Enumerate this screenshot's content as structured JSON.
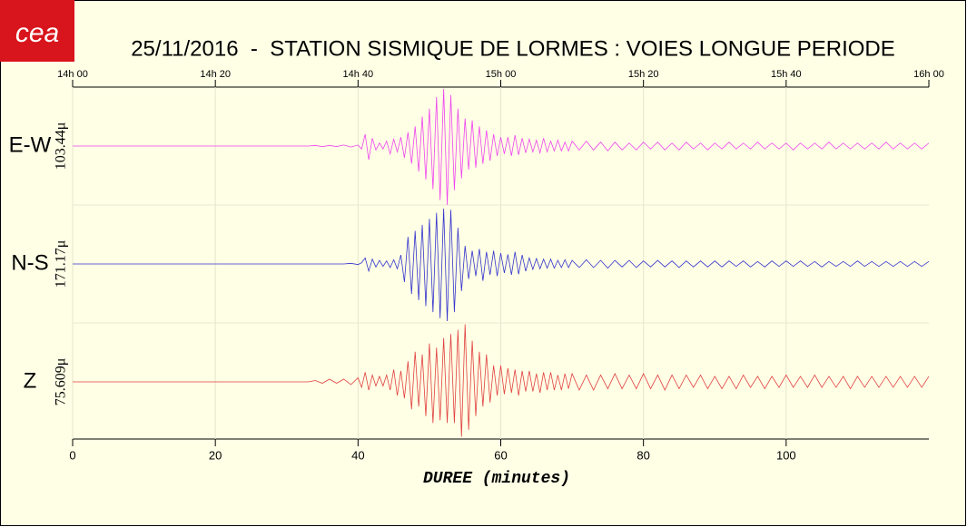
{
  "logo": "cea",
  "chart_data": {
    "type": "line",
    "title": "25/11/2016  -  STATION SISMIQUE DE LORMES : VOIES LONGUE PERIODE",
    "xlabel": "DUREE (minutes)",
    "xlim": [
      0,
      120
    ],
    "xticks": [
      0,
      20,
      40,
      60,
      80,
      100
    ],
    "x2ticks": [
      {
        "value": 0,
        "label": "14h 00"
      },
      {
        "value": 20,
        "label": "14h 20"
      },
      {
        "value": 40,
        "label": "14h 40"
      },
      {
        "value": 60,
        "label": "15h 00"
      },
      {
        "value": 80,
        "label": "15h 20"
      },
      {
        "value": 100,
        "label": "15h 40"
      },
      {
        "value": 120,
        "label": "16h 00"
      }
    ],
    "grid": true,
    "x": [
      0,
      20,
      33,
      34,
      35,
      36,
      37,
      38,
      39,
      40,
      40.5,
      41,
      41.5,
      42,
      42.5,
      43,
      43.5,
      44,
      44.5,
      45,
      45.5,
      46,
      46.5,
      47,
      47.5,
      48,
      48.5,
      49,
      49.5,
      50,
      50.5,
      51,
      51.5,
      52,
      52.5,
      53,
      53.5,
      54,
      54.5,
      55,
      55.5,
      56,
      56.5,
      57,
      57.5,
      58,
      58.5,
      59,
      59.5,
      60,
      60.5,
      61,
      61.5,
      62,
      62.5,
      63,
      63.5,
      64,
      64.5,
      65,
      65.5,
      66,
      66.5,
      67,
      67.5,
      68,
      68.5,
      69,
      69.5,
      70,
      71,
      72,
      73,
      74,
      75,
      76,
      77,
      78,
      79,
      80,
      81,
      82,
      83,
      84,
      85,
      86,
      87,
      88,
      89,
      90,
      91,
      92,
      93,
      94,
      95,
      96,
      97,
      98,
      99,
      100,
      101,
      102,
      103,
      104,
      105,
      106,
      107,
      108,
      109,
      110,
      111,
      112,
      113,
      114,
      115,
      116,
      117,
      118,
      119,
      120
    ],
    "series": [
      {
        "name": "E-W",
        "scale_label": "103.44μ",
        "color": "#ee44ee",
        "ylim": [
          -60,
          60
        ],
        "values": [
          0,
          0,
          0,
          0.5,
          -0.5,
          0.5,
          -0.5,
          1,
          -1,
          1,
          -3,
          12,
          -14,
          8,
          -4,
          3,
          -3,
          5,
          -8,
          7,
          -6,
          9,
          -12,
          14,
          -18,
          20,
          -26,
          30,
          -34,
          38,
          -44,
          50,
          -55,
          58,
          -60,
          52,
          -45,
          38,
          -33,
          28,
          -24,
          26,
          -22,
          20,
          -18,
          16,
          -15,
          12,
          -10,
          9,
          -8,
          9,
          -10,
          11,
          -9,
          8,
          -7,
          7,
          -6,
          6,
          -7,
          8,
          -6,
          5,
          -5,
          6,
          -5,
          4,
          -5,
          5,
          -4,
          5,
          -4,
          4,
          -5,
          4,
          -4,
          3,
          -4,
          4,
          -3,
          4,
          -4,
          3,
          -4,
          4,
          -3,
          3,
          -4,
          3,
          -3,
          4,
          -3,
          3,
          -3,
          4,
          -3,
          3,
          -3,
          3,
          -4,
          3,
          -3,
          3,
          -3,
          4,
          -3,
          3,
          -3,
          3,
          -3,
          3,
          -3,
          4,
          -3,
          3,
          -3,
          3,
          -3,
          3
        ]
      },
      {
        "name": "N-S",
        "scale_label": "171.17μ",
        "color": "#3333cc",
        "ylim": [
          -98,
          98
        ],
        "values": [
          0,
          0,
          0,
          0,
          0,
          0,
          0,
          0,
          1,
          -1,
          2,
          10,
          -12,
          8,
          -5,
          6,
          -4,
          5,
          -6,
          7,
          -8,
          15,
          -30,
          45,
          -50,
          55,
          -60,
          65,
          -70,
          75,
          -80,
          85,
          -90,
          92,
          -95,
          90,
          -80,
          60,
          -45,
          30,
          -25,
          22,
          -20,
          25,
          -28,
          20,
          -18,
          22,
          -20,
          18,
          -15,
          16,
          -18,
          20,
          -17,
          15,
          -12,
          10,
          -9,
          9,
          -8,
          8,
          -7,
          8,
          -7,
          6,
          -6,
          7,
          -6,
          6,
          -6,
          7,
          -6,
          6,
          -7,
          6,
          -5,
          6,
          -6,
          5,
          -5,
          6,
          -5,
          5,
          -6,
          5,
          -5,
          5,
          -5,
          5,
          -5,
          5,
          -4,
          5,
          -5,
          4,
          -5,
          5,
          -4,
          5,
          -4,
          5,
          -4,
          4,
          -5,
          4,
          -4,
          4,
          -4,
          5,
          -4,
          4,
          -4,
          4,
          -4,
          4,
          -4,
          4,
          -4,
          4
        ]
      },
      {
        "name": "Z",
        "scale_label": "75.609μ",
        "color": "#e04040",
        "ylim": [
          -43,
          43
        ],
        "values": [
          0,
          0,
          0,
          1,
          -1,
          2,
          -1,
          2,
          -2,
          3,
          -4,
          7,
          -6,
          5,
          -3,
          4,
          -3,
          5,
          -6,
          9,
          -10,
          8,
          -12,
          15,
          -20,
          22,
          -18,
          20,
          -25,
          28,
          -30,
          25,
          -28,
          32,
          -30,
          35,
          -30,
          38,
          -40,
          42,
          -35,
          30,
          -25,
          22,
          -18,
          20,
          -15,
          12,
          -10,
          12,
          -9,
          10,
          -8,
          9,
          -10,
          8,
          -7,
          8,
          -7,
          6,
          -8,
          7,
          -6,
          7,
          -6,
          5,
          -6,
          6,
          -5,
          6,
          -6,
          5,
          -6,
          5,
          -5,
          6,
          -5,
          5,
          -5,
          6,
          -5,
          5,
          -6,
          5,
          -5,
          5,
          -4,
          5,
          -5,
          4,
          -5,
          4,
          -5,
          5,
          -4,
          4,
          -5,
          4,
          -4,
          5,
          -4,
          4,
          -4,
          5,
          -4,
          4,
          -4,
          4,
          -5,
          4,
          -4,
          4,
          -4,
          4,
          -4,
          4,
          -4,
          4,
          -4,
          4
        ]
      }
    ]
  }
}
